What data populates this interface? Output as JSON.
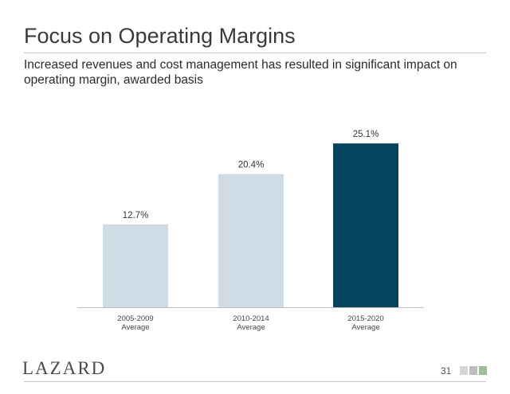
{
  "slide": {
    "title": "Focus on Operating Margins",
    "subtitle": "Increased revenues and cost management has resulted in significant impact on operating margin, awarded basis",
    "logo_text": "LAZARD",
    "page_number": "31",
    "page_blocks_colors": [
      "#d6d6d6",
      "#bdbdbd",
      "#9dbf93"
    ]
  },
  "chart_data": {
    "type": "bar",
    "categories": [
      [
        "2005-2009",
        "Average"
      ],
      [
        "2010-2014",
        "Average"
      ],
      [
        "2015-2020",
        "Average"
      ]
    ],
    "values": [
      12.7,
      20.4,
      25.1
    ],
    "data_labels": [
      "12.7%",
      "20.4%",
      "25.1%"
    ],
    "title": "",
    "xlabel": "",
    "ylabel": "",
    "ylim": [
      0,
      30
    ],
    "grid": false,
    "legend": "none",
    "bar_colors": [
      "#cfdce6",
      "#cfdce6",
      "#05445e"
    ]
  }
}
